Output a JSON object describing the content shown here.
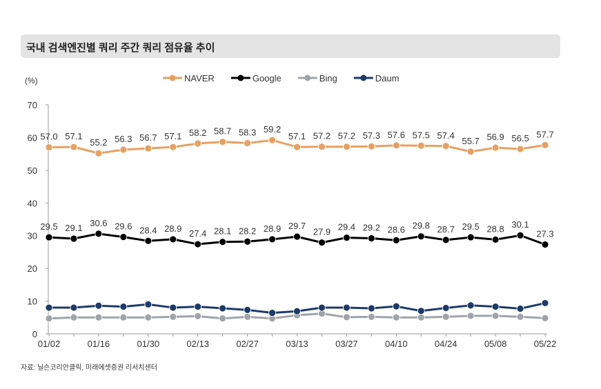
{
  "title": "국내 검색엔진별 쿼리 주간 쿼리 점유율 추이",
  "source": "자료: 닐슨코리안클릭, 미래에셋증권 리서치센터",
  "chart_data": {
    "type": "line",
    "title": "국내 검색엔진별 쿼리 주간 쿼리 점유율 추이",
    "ylabel": "(%)",
    "ylim": [
      0,
      70
    ],
    "yticks": [
      0,
      10,
      20,
      30,
      40,
      50,
      60,
      70
    ],
    "grid": false,
    "legend": "top-center",
    "x": [
      "01/02",
      "01/09",
      "01/16",
      "01/23",
      "01/30",
      "02/06",
      "02/13",
      "02/20",
      "02/27",
      "03/06",
      "03/13",
      "03/20",
      "03/27",
      "04/03",
      "04/10",
      "04/17",
      "04/24",
      "05/01",
      "05/08",
      "05/15",
      "05/22"
    ],
    "xtick_labels": [
      "01/02",
      "01/16",
      "01/30",
      "02/13",
      "02/27",
      "03/13",
      "03/27",
      "04/10",
      "04/24",
      "05/08",
      "05/22"
    ],
    "series": [
      {
        "name": "NAVER",
        "color": "#e8a060",
        "labeled": true,
        "values": [
          57.0,
          57.1,
          55.2,
          56.3,
          56.7,
          57.1,
          58.2,
          58.7,
          58.3,
          59.2,
          57.1,
          57.2,
          57.2,
          57.3,
          57.6,
          57.5,
          57.4,
          55.7,
          56.9,
          56.5,
          57.7
        ]
      },
      {
        "name": "Google",
        "color": "#000000",
        "labeled": true,
        "values": [
          29.5,
          29.1,
          30.6,
          29.6,
          28.4,
          28.9,
          27.4,
          28.1,
          28.2,
          28.9,
          29.7,
          27.9,
          29.4,
          29.2,
          28.6,
          29.8,
          28.7,
          29.5,
          28.8,
          30.1,
          27.3
        ]
      },
      {
        "name": "Bing",
        "color": "#a0a4a8",
        "labeled": false,
        "values": [
          4.7,
          5.0,
          5.0,
          5.0,
          5.0,
          5.2,
          5.4,
          4.7,
          5.2,
          4.7,
          5.7,
          6.2,
          5.1,
          5.2,
          5.0,
          5.0,
          5.2,
          5.5,
          5.5,
          5.2,
          4.8
        ]
      },
      {
        "name": "Daum",
        "color": "#1b3a6b",
        "labeled": false,
        "values": [
          8.0,
          8.0,
          8.6,
          8.3,
          9.0,
          8.0,
          8.3,
          7.8,
          7.3,
          6.4,
          6.9,
          8.0,
          8.0,
          7.8,
          8.4,
          7.0,
          7.9,
          8.7,
          8.3,
          7.7,
          9.4
        ]
      }
    ]
  }
}
